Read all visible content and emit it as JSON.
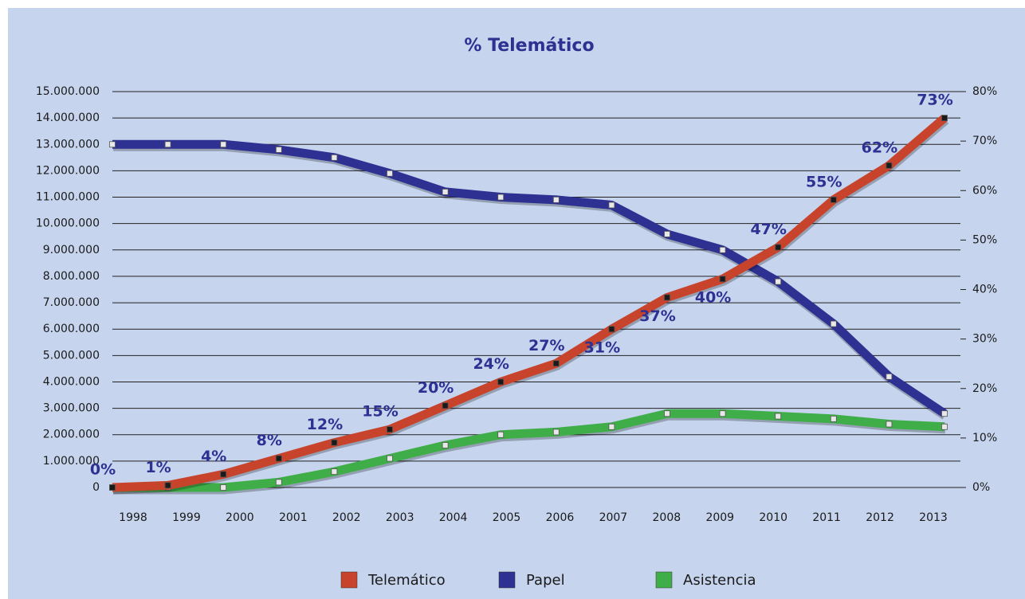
{
  "chart_data": {
    "type": "line",
    "title": "% Telemático",
    "categories": [
      "1998",
      "1999",
      "2000",
      "2001",
      "2002",
      "2003",
      "2004",
      "2005",
      "2006",
      "2007",
      "2008",
      "2009",
      "2010",
      "2011",
      "2012",
      "2013"
    ],
    "series": [
      {
        "name": "Telemático",
        "color": "#c8432b",
        "marker_color": "#1a1a1a",
        "values": [
          0,
          80000,
          500000,
          1100000,
          1700000,
          2200000,
          3100000,
          4000000,
          4700000,
          6000000,
          7200000,
          7900000,
          9100000,
          10900000,
          12200000,
          14000000
        ]
      },
      {
        "name": "Papel",
        "color": "#2e3192",
        "marker_color": "#e8e8e8",
        "values": [
          13000000,
          13000000,
          13000000,
          12800000,
          12500000,
          11900000,
          11200000,
          11000000,
          10900000,
          10700000,
          9600000,
          9000000,
          7800000,
          6200000,
          4200000,
          2800000
        ]
      },
      {
        "name": "Asistencia",
        "color": "#3fae49",
        "marker_color": "#e8e8e8",
        "values": [
          0,
          0,
          0,
          200000,
          600000,
          1100000,
          1600000,
          2000000,
          2100000,
          2300000,
          2800000,
          2800000,
          2700000,
          2600000,
          2400000,
          2300000
        ]
      }
    ],
    "percent": {
      "axis": "y2",
      "values": [
        0,
        1,
        4,
        8,
        12,
        15,
        20,
        24,
        27,
        31,
        37,
        40,
        47,
        55,
        62,
        73
      ],
      "value_labels": [
        "0%",
        "1%",
        "4%",
        "8%",
        "12%",
        "15%",
        "20%",
        "24%",
        "27%",
        "31%",
        "37%",
        "40%",
        "47%",
        "55%",
        "62%",
        "73%"
      ]
    },
    "ylim": [
      0,
      15000000
    ],
    "yticks": [
      0,
      {
        "value": 1000000,
        "label": "1.000.000"
      },
      {
        "value": 2000000,
        "label": "2.000.000"
      },
      {
        "value": 3000000,
        "label": "3.000.000"
      },
      {
        "value": 4000000,
        "label": "4.000.000"
      },
      {
        "value": 5000000,
        "label": "5.000.000"
      },
      {
        "value": 6000000,
        "label": "6.000.000"
      },
      {
        "value": 7000000,
        "label": "7.000.000"
      },
      {
        "value": 8000000,
        "label": "8.000.000"
      },
      {
        "value": 9000000,
        "label": "9.000.000"
      },
      {
        "value": 10000000,
        "label": "10.000.000"
      },
      {
        "value": 11000000,
        "label": "11.000.000"
      },
      {
        "value": 12000000,
        "label": "12.000.000"
      },
      {
        "value": 13000000,
        "label": "13.000.000"
      },
      {
        "value": 14000000,
        "label": "14.000.000"
      },
      {
        "value": 15000000,
        "label": "15.000.000"
      }
    ],
    "y2lim": [
      0,
      80
    ],
    "y2ticks": [
      {
        "value": 0,
        "label": "0%"
      },
      {
        "value": 10,
        "label": "10%"
      },
      {
        "value": 20,
        "label": "20%"
      },
      {
        "value": 30,
        "label": "30%"
      },
      {
        "value": 40,
        "label": "40%"
      },
      {
        "value": 50,
        "label": "50%"
      },
      {
        "value": 60,
        "label": "60%"
      },
      {
        "value": 70,
        "label": "70%"
      },
      {
        "value": 80,
        "label": "80%"
      }
    ],
    "grid": true,
    "legend": "bottom"
  }
}
